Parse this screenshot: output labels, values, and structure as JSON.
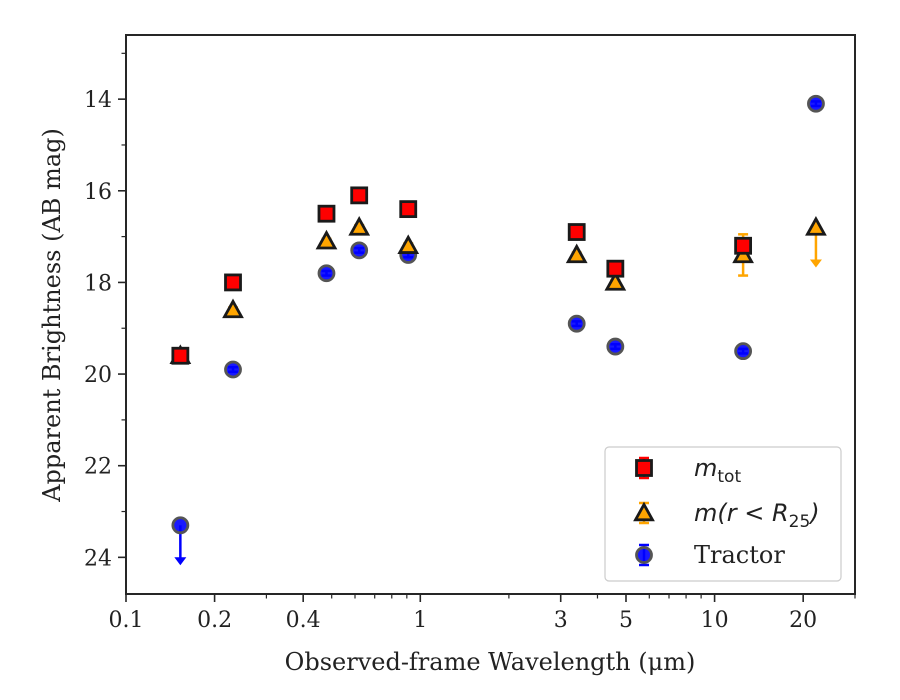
{
  "chart_data": {
    "type": "scatter",
    "xlabel": "Observed-frame Wavelength (μm)",
    "ylabel": "Apparent Brightness (AB mag)",
    "xscale": "log",
    "xlim": [
      0.1,
      30
    ],
    "ylim": [
      24.8,
      12.6
    ],
    "y_inverted": true,
    "x_ticks": [
      0.1,
      0.2,
      0.4,
      1,
      3,
      5,
      10,
      20
    ],
    "x_tick_labels": [
      "0.1",
      "0.2",
      "0.4",
      "1",
      "3",
      "5",
      "10",
      "20"
    ],
    "y_ticks": [
      14,
      16,
      18,
      20,
      22,
      24
    ],
    "y_tick_labels": [
      "14",
      "16",
      "18",
      "20",
      "22",
      "24"
    ],
    "grid": false,
    "legend_position": "lower-right",
    "legend": [
      {
        "series": "m_tot",
        "label_main": "m",
        "label_sub": "tot"
      },
      {
        "series": "m_r25",
        "label_main": "m(r < R",
        "label_sub": "25",
        "label_end": ")"
      },
      {
        "series": "tractor",
        "label_main": "Tractor"
      }
    ],
    "series": [
      {
        "key": "m_tot",
        "marker": "square",
        "color": "#ff0000",
        "edge": "#1a1a1a",
        "errcolor": "#ff0000",
        "points": [
          {
            "x": 0.153,
            "y": 19.6,
            "err": 0.1
          },
          {
            "x": 0.231,
            "y": 18.0,
            "err": 0.1
          },
          {
            "x": 0.48,
            "y": 16.5,
            "err": 0.1
          },
          {
            "x": 0.62,
            "y": 16.1,
            "err": 0.1
          },
          {
            "x": 0.91,
            "y": 16.4,
            "err": 0.1
          },
          {
            "x": 3.4,
            "y": 16.9,
            "err": 0.1
          },
          {
            "x": 4.6,
            "y": 17.7,
            "err": 0.1
          },
          {
            "x": 12.5,
            "y": 17.2,
            "err": 0.1
          }
        ]
      },
      {
        "key": "m_r25",
        "marker": "triangle",
        "color": "#ffa500",
        "edge": "#1a1a1a",
        "errcolor": "#ffa500",
        "points": [
          {
            "x": 0.153,
            "y": 19.6,
            "err": 0.05
          },
          {
            "x": 0.231,
            "y": 18.6,
            "err": 0.05
          },
          {
            "x": 0.48,
            "y": 17.1,
            "err": 0.05
          },
          {
            "x": 0.62,
            "y": 16.8,
            "err": 0.05
          },
          {
            "x": 0.91,
            "y": 17.2,
            "err": 0.05
          },
          {
            "x": 3.4,
            "y": 17.4,
            "err": 0.05
          },
          {
            "x": 4.6,
            "y": 18.0,
            "err": 0.05
          },
          {
            "x": 12.5,
            "y": 17.4,
            "err": 0.45
          },
          {
            "x": 22.1,
            "y": 16.8,
            "upper_limit": true
          }
        ]
      },
      {
        "key": "tractor",
        "marker": "circle",
        "color": "#0000ff",
        "edge": "#555555",
        "errcolor": "#0000ff",
        "points": [
          {
            "x": 0.153,
            "y": 23.3,
            "upper_limit": true
          },
          {
            "x": 0.231,
            "y": 19.9,
            "err": 0.05
          },
          {
            "x": 0.48,
            "y": 17.8,
            "err": 0.05
          },
          {
            "x": 0.62,
            "y": 17.3,
            "err": 0.05
          },
          {
            "x": 0.91,
            "y": 17.4,
            "err": 0.05
          },
          {
            "x": 3.4,
            "y": 18.9,
            "err": 0.05
          },
          {
            "x": 4.6,
            "y": 19.4,
            "err": 0.05
          },
          {
            "x": 12.5,
            "y": 19.5,
            "err": 0.05
          },
          {
            "x": 22.1,
            "y": 14.1,
            "err": 0.05
          }
        ]
      }
    ]
  }
}
